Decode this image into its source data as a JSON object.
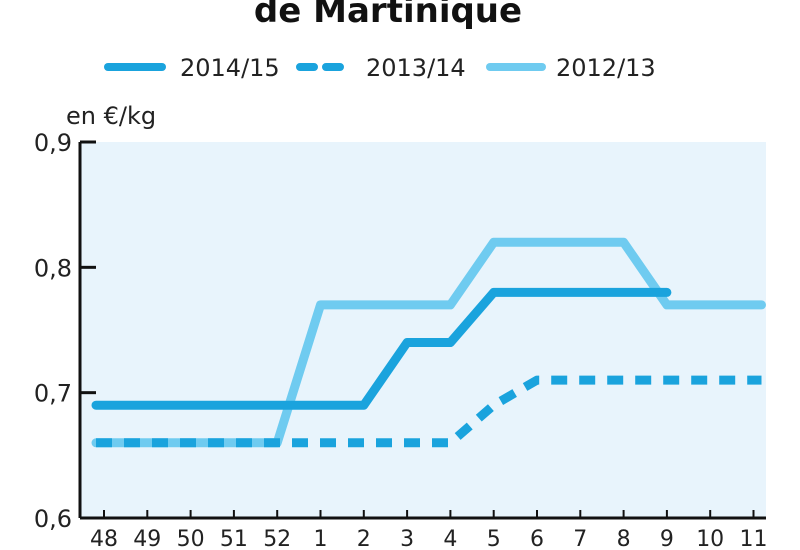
{
  "chart_data": {
    "type": "line",
    "title": "de Martinique",
    "ylabel": "en €/kg",
    "xlabel": "",
    "categories": [
      "48",
      "49",
      "50",
      "51",
      "52",
      "1",
      "2",
      "3",
      "4",
      "5",
      "6",
      "7",
      "8",
      "9",
      "10",
      "11"
    ],
    "ylim": [
      0.6,
      0.9
    ],
    "yticks": [
      "0,9",
      "0,8",
      "0,7",
      "0,6"
    ],
    "grid": false,
    "legend_position": "top",
    "plot_background": "#e8f4fc",
    "series": [
      {
        "name": "2014/15",
        "style": "solid",
        "color": "#1aa3dd",
        "values": [
          0.69,
          0.69,
          0.69,
          0.69,
          0.69,
          0.69,
          0.69,
          0.74,
          0.74,
          0.78,
          0.78,
          0.78,
          0.78,
          0.78,
          null,
          null
        ]
      },
      {
        "name": "2013/14",
        "style": "dashed",
        "color": "#1aa3dd",
        "values": [
          0.66,
          0.66,
          0.66,
          0.66,
          0.66,
          0.66,
          0.66,
          0.66,
          0.66,
          0.69,
          0.71,
          0.71,
          0.71,
          0.71,
          0.71,
          0.71
        ]
      },
      {
        "name": "2012/13",
        "style": "solid-light",
        "color": "#6fcbf0",
        "values": [
          0.66,
          0.66,
          0.66,
          0.66,
          0.66,
          0.77,
          0.77,
          0.77,
          0.77,
          0.82,
          0.82,
          0.82,
          0.82,
          0.77,
          0.77,
          0.77
        ]
      }
    ]
  }
}
